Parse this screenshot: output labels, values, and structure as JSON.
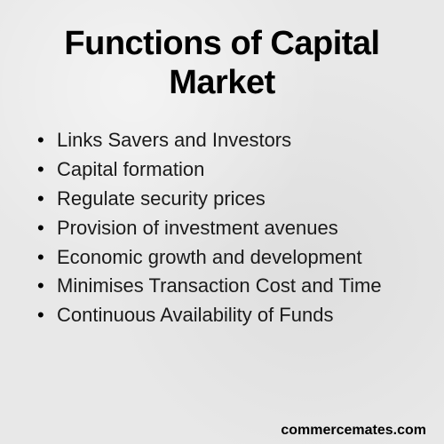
{
  "title": "Functions of Capital Market",
  "title_fontsize": 38,
  "title_color": "#000000",
  "background_color": "#e8e8e8",
  "text_color": "#1a1a1a",
  "list_fontsize": 22,
  "items": [
    "Links Savers and Investors",
    "Capital formation",
    "Regulate security prices",
    "Provision of investment avenues",
    "Economic growth and development",
    "Minimises Transaction Cost and Time",
    "Continuous Availability of Funds"
  ],
  "source": "commercemates.com",
  "source_fontsize": 16
}
